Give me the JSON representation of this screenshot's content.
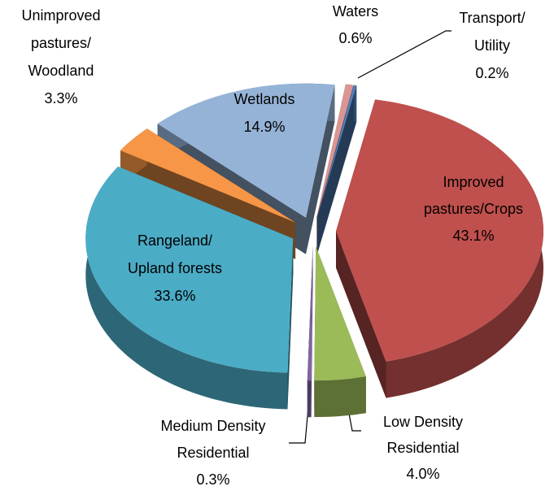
{
  "chart_data": {
    "type": "pie",
    "categories": [
      "Waters",
      "Transport/\nUtility",
      "Improved\npastures/Crops",
      "Low Density\nResidential",
      "Medium Density\nResidential",
      "Rangeland/\nUpland forests",
      "Unimproved\npastures/\nWoodland",
      "Wetlands"
    ],
    "values": [
      0.6,
      0.2,
      43.1,
      4.0,
      0.3,
      33.6,
      3.3,
      14.9
    ],
    "value_labels": [
      "0.6%",
      "0.2%",
      "43.1%",
      "4.0%",
      "0.3%",
      "33.6%",
      "3.3%",
      "14.9%"
    ],
    "colors": [
      "#d99694",
      "#4f81bd",
      "#c0504d",
      "#9bbb59",
      "#8064a2",
      "#4bacc6",
      "#f79646",
      "#95b3d7"
    ]
  }
}
